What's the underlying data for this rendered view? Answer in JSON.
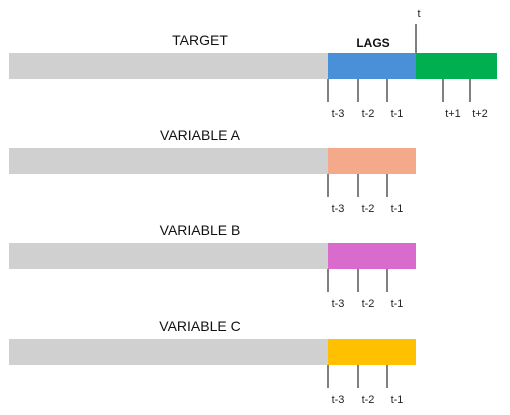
{
  "lags_label": "LAGS",
  "t_label": "t",
  "colors": {
    "history": "#d0d0d0",
    "target_lags": "#4a90d9",
    "future": "#00b050",
    "variable_a": "#f4a98a",
    "variable_b": "#d96bcc",
    "variable_c": "#ffc000"
  },
  "rows": [
    {
      "label": "TARGET",
      "lag_color": "#4a90d9",
      "has_future": true,
      "lag_ticks": [
        "t-3",
        "t-2",
        "t-1"
      ],
      "future_ticks": [
        "t+1",
        "t+2"
      ]
    },
    {
      "label": "VARIABLE A",
      "lag_color": "#f4a98a",
      "has_future": false,
      "lag_ticks": [
        "t-3",
        "t-2",
        "t-1"
      ],
      "future_ticks": []
    },
    {
      "label": "VARIABLE B",
      "lag_color": "#d96bcc",
      "has_future": false,
      "lag_ticks": [
        "t-3",
        "t-2",
        "t-1"
      ],
      "future_ticks": []
    },
    {
      "label": "VARIABLE C",
      "lag_color": "#ffc000",
      "has_future": false,
      "lag_ticks": [
        "t-3",
        "t-2",
        "t-1"
      ],
      "future_ticks": []
    }
  ]
}
